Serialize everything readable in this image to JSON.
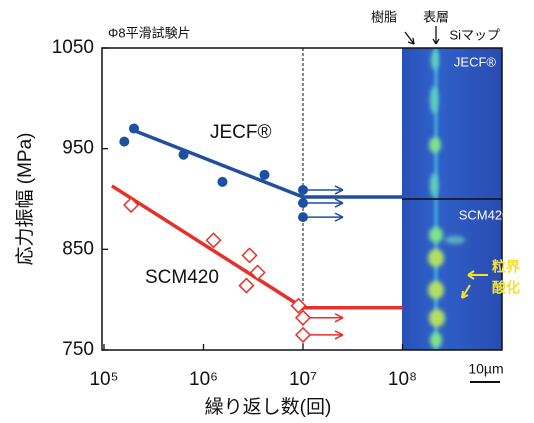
{
  "chart_data": {
    "type": "scatter",
    "xlabel": "繰り返し数(回)",
    "ylabel": "応力振幅 (MPa)",
    "xscale": "log",
    "xlim": [
      100000,
      1000000000
    ],
    "ylim": [
      750,
      1050
    ],
    "xticks": [
      {
        "value": 100000,
        "label": "10⁵"
      },
      {
        "value": 1000000,
        "label": "10⁶"
      },
      {
        "value": 10000000,
        "label": "10⁷"
      },
      {
        "value": 100000000,
        "label": "10⁸"
      }
    ],
    "yticks": [
      750,
      850,
      950,
      1050
    ],
    "reference_x": 10000000,
    "series": [
      {
        "name": "JECF®",
        "color": "#1f4fa0",
        "marker": "circle",
        "x": [
          160000,
          200000,
          630000,
          1550000,
          4100000,
          10000000,
          10000000,
          10000000
        ],
        "values": [
          957,
          970,
          944,
          917,
          924,
          909,
          896,
          882
        ],
        "runout": [
          false,
          false,
          false,
          false,
          false,
          true,
          true,
          true
        ],
        "fit_x": [
          200000,
          10000000,
          100000000
        ],
        "fit_values": [
          968,
          902,
          902
        ]
      },
      {
        "name": "SCM420",
        "color": "#e8302a",
        "marker": "diamond",
        "x": [
          187000,
          1260000,
          2900000,
          2700000,
          3500000,
          9000000,
          10000000,
          10000000
        ],
        "values": [
          894,
          859,
          844,
          814,
          827,
          794,
          782,
          765
        ],
        "runout": [
          false,
          false,
          false,
          false,
          false,
          false,
          true,
          true
        ],
        "fit_x": [
          120000,
          10000000,
          100000000
        ],
        "fit_values": [
          913,
          792,
          792
        ]
      }
    ],
    "annotations": {
      "specimen": "Φ8平滑試験片",
      "resin": "樹脂",
      "surface": "表層",
      "si_map": "Siマップ",
      "inset_top": "JECF®",
      "inset_bottom": "SCM420",
      "grain_1": "粒界",
      "grain_2": "酸化",
      "scale": "10µm"
    }
  }
}
